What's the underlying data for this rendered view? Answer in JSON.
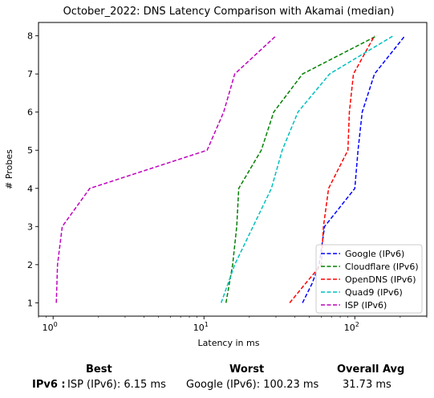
{
  "chart_data": {
    "type": "line",
    "title": "October_2022: DNS Latency Comparison with Akamai (median)",
    "xlabel": "Latency in ms",
    "ylabel": "# Probes",
    "xscale": "log",
    "xlim": [
      0.8,
      300
    ],
    "ylim": [
      0.65,
      8.35
    ],
    "x_ticks": [
      {
        "value": 1,
        "label": "10",
        "exp": "0"
      },
      {
        "value": 10,
        "label": "10",
        "exp": "1"
      },
      {
        "value": 100,
        "label": "10",
        "exp": "2"
      }
    ],
    "y_ticks": [
      1,
      2,
      3,
      4,
      5,
      6,
      7,
      8
    ],
    "y_tick_labels": [
      "1",
      "2",
      "3",
      "4",
      "5",
      "6",
      "7",
      "8"
    ],
    "legend_position": "lower-right",
    "grid": false,
    "series": [
      {
        "name": "Google (IPv6)",
        "color": "#0000ff",
        "x": [
          45,
          52,
          58,
          63,
          100,
          105,
          112,
          135,
          215
        ],
        "y": [
          1,
          1.5,
          2,
          3,
          4,
          5,
          6,
          7,
          8
        ]
      },
      {
        "name": "Cloudflare (IPv6)",
        "color": "#008000",
        "x": [
          14,
          15.5,
          16.5,
          17,
          24,
          29,
          45,
          140
        ],
        "y": [
          1,
          2,
          3,
          4,
          5,
          6,
          7,
          8
        ]
      },
      {
        "name": "OpenDNS (IPv6)",
        "color": "#ff0000",
        "x": [
          37,
          47,
          60,
          62,
          67,
          90,
          92,
          98,
          135
        ],
        "y": [
          1,
          1.5,
          2,
          3,
          4,
          5,
          6,
          7,
          8
        ]
      },
      {
        "name": "Quad9 (IPv6)",
        "color": "#00bfbf",
        "x": [
          13,
          16,
          28,
          33,
          42,
          68,
          180
        ],
        "y": [
          1,
          2,
          4,
          5,
          6,
          7,
          8
        ]
      },
      {
        "name": "ISP (IPv6)",
        "color": "#bf00bf",
        "x": [
          1.05,
          1.07,
          1.15,
          1.75,
          10.5,
          13.5,
          16,
          30
        ],
        "y": [
          1,
          2,
          3,
          4,
          5,
          6,
          7,
          8
        ]
      }
    ]
  },
  "summary": {
    "headers": {
      "best": "Best",
      "worst": "Worst",
      "overall": "Overall Avg"
    },
    "rows": [
      {
        "label": "IPv6 :",
        "best": "ISP (IPv6): 6.15 ms",
        "worst": "Google (IPv6): 100.23 ms",
        "overall": "31.73 ms"
      }
    ]
  }
}
